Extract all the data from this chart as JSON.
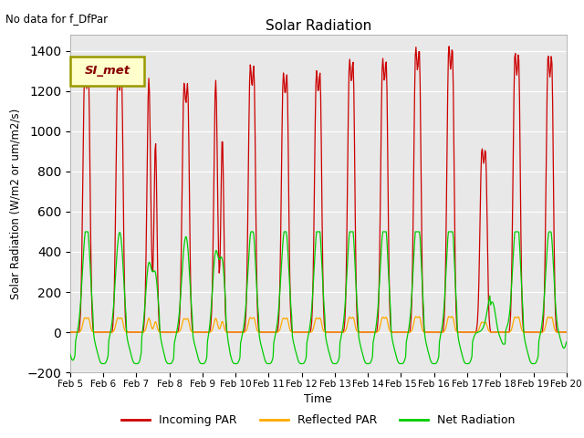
{
  "title": "Solar Radiation",
  "subtitle": "No data for f_DfPar",
  "ylabel": "Solar Radiation (W/m2 or um/m2/s)",
  "xlabel": "Time",
  "ylim": [
    -200,
    1480
  ],
  "xlim": [
    0,
    15
  ],
  "legend_label": "SI_met",
  "x_tick_labels": [
    "Feb 5",
    "Feb 6",
    "Feb 7",
    "Feb 8",
    "Feb 9",
    "Feb 10",
    "Feb 11",
    "Feb 12",
    "Feb 13",
    "Feb 14",
    "Feb 15",
    "Feb 16",
    "Feb 17",
    "Feb 18",
    "Feb 19",
    "Feb 20"
  ],
  "bg_color": "#e8e8e8",
  "line_colors": {
    "incoming": "#cc0000",
    "reflected": "#ffaa00",
    "net": "#00cc00"
  },
  "legend_entries": [
    "Incoming PAR",
    "Reflected PAR",
    "Net Radiation"
  ],
  "yticks": [
    -200,
    0,
    200,
    400,
    600,
    800,
    1000,
    1200,
    1400
  ],
  "incoming_peaks": [
    1270,
    1260,
    1265,
    1195,
    1255,
    1280,
    1240,
    1250,
    1305,
    1310,
    1365,
    1370,
    880,
    1340,
    1330
  ],
  "dip_days": [
    2,
    4
  ],
  "dip_values": [
    950,
    975
  ],
  "net_peaks": [
    370,
    345,
    335,
    330,
    390,
    370,
    365,
    385,
    390,
    390,
    410,
    420,
    195,
    395,
    365
  ],
  "net_night_neg": -80,
  "reflected_peak": 70
}
